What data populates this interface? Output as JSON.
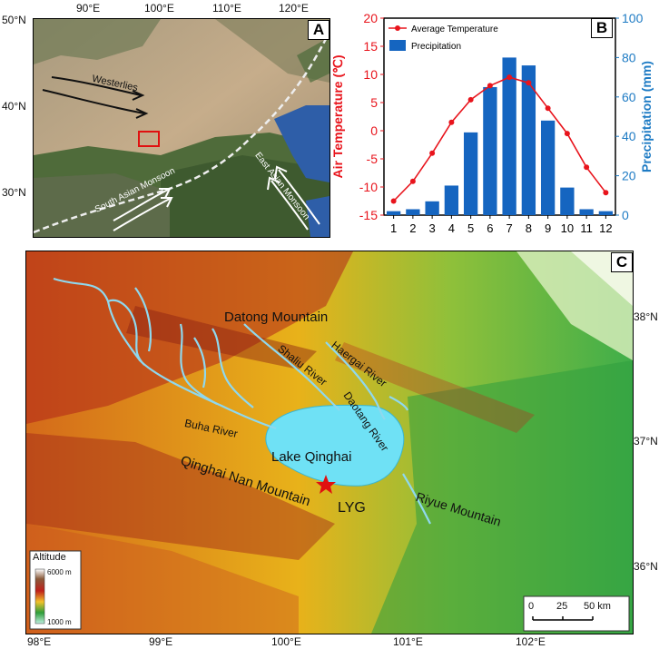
{
  "panel_a": {
    "tag": "A",
    "lon_labels": [
      "90°E",
      "100°E",
      "110°E",
      "120°E"
    ],
    "lat_labels": [
      "50°N",
      "40°N",
      "30°N"
    ],
    "westerlies": "Westerlies",
    "south_asian_monsoon": "South Asian Monsoon",
    "east_asian_monsoon": "East Asian Monsoon"
  },
  "panel_b": {
    "tag": "B",
    "legend_temp": "Average Temperature",
    "legend_precip": "Precipitation",
    "left_axis_label": "Air Temperature (℃)",
    "right_axis_label": "Precipitation (mm)",
    "colors": {
      "temp": "#e8141c",
      "precip": "#1565c0",
      "right_axis": "#1e7bc4"
    }
  },
  "chart_data": {
    "type": "bar",
    "categories": [
      "1",
      "2",
      "3",
      "4",
      "5",
      "6",
      "7",
      "8",
      "9",
      "10",
      "11",
      "12"
    ],
    "series": [
      {
        "name": "Precipitation",
        "type": "bar",
        "axis": "right",
        "values": [
          2,
          3,
          7,
          15,
          42,
          65,
          80,
          76,
          48,
          14,
          3,
          2
        ]
      },
      {
        "name": "Average Temperature",
        "type": "line",
        "axis": "left",
        "values": [
          -12.5,
          -9,
          -4,
          1.5,
          5.5,
          8,
          9.5,
          8.5,
          4,
          -0.5,
          -6.5,
          -11
        ]
      }
    ],
    "ylim_left": [
      -15,
      20
    ],
    "yticks_left": [
      -15,
      -10,
      -5,
      0,
      5,
      10,
      15,
      20
    ],
    "ylim_right": [
      0,
      100
    ],
    "yticks_right": [
      0,
      20,
      40,
      60,
      80,
      100
    ],
    "ylabel_left": "Air Temperature (℃)",
    "ylabel_right": "Precipitation (mm)",
    "legend_position": "top-left"
  },
  "panel_c": {
    "tag": "C",
    "lon_labels": [
      "98°E",
      "99°E",
      "100°E",
      "101°E",
      "102°E"
    ],
    "lat_labels": [
      "38°N",
      "37°N",
      "36°N"
    ],
    "lake": "Lake Qinghai",
    "site": "LYG",
    "places": {
      "datong_mountain": "Datong Mountain",
      "haergai_river": "Haergai River",
      "shaliu_river": "Shaliu River",
      "daotang_river": "Daotang River",
      "buha_river": "Buha River",
      "qinghai_nan_mountain": "Qinghai Nan Mountain",
      "riyue_mountain": "Riyue Mountain"
    },
    "altitude_legend": {
      "title": "Altitude",
      "max": "6000 m",
      "min": "1000 m"
    },
    "scale_bar": {
      "ticks": [
        "0",
        "25",
        "50 km"
      ]
    }
  }
}
